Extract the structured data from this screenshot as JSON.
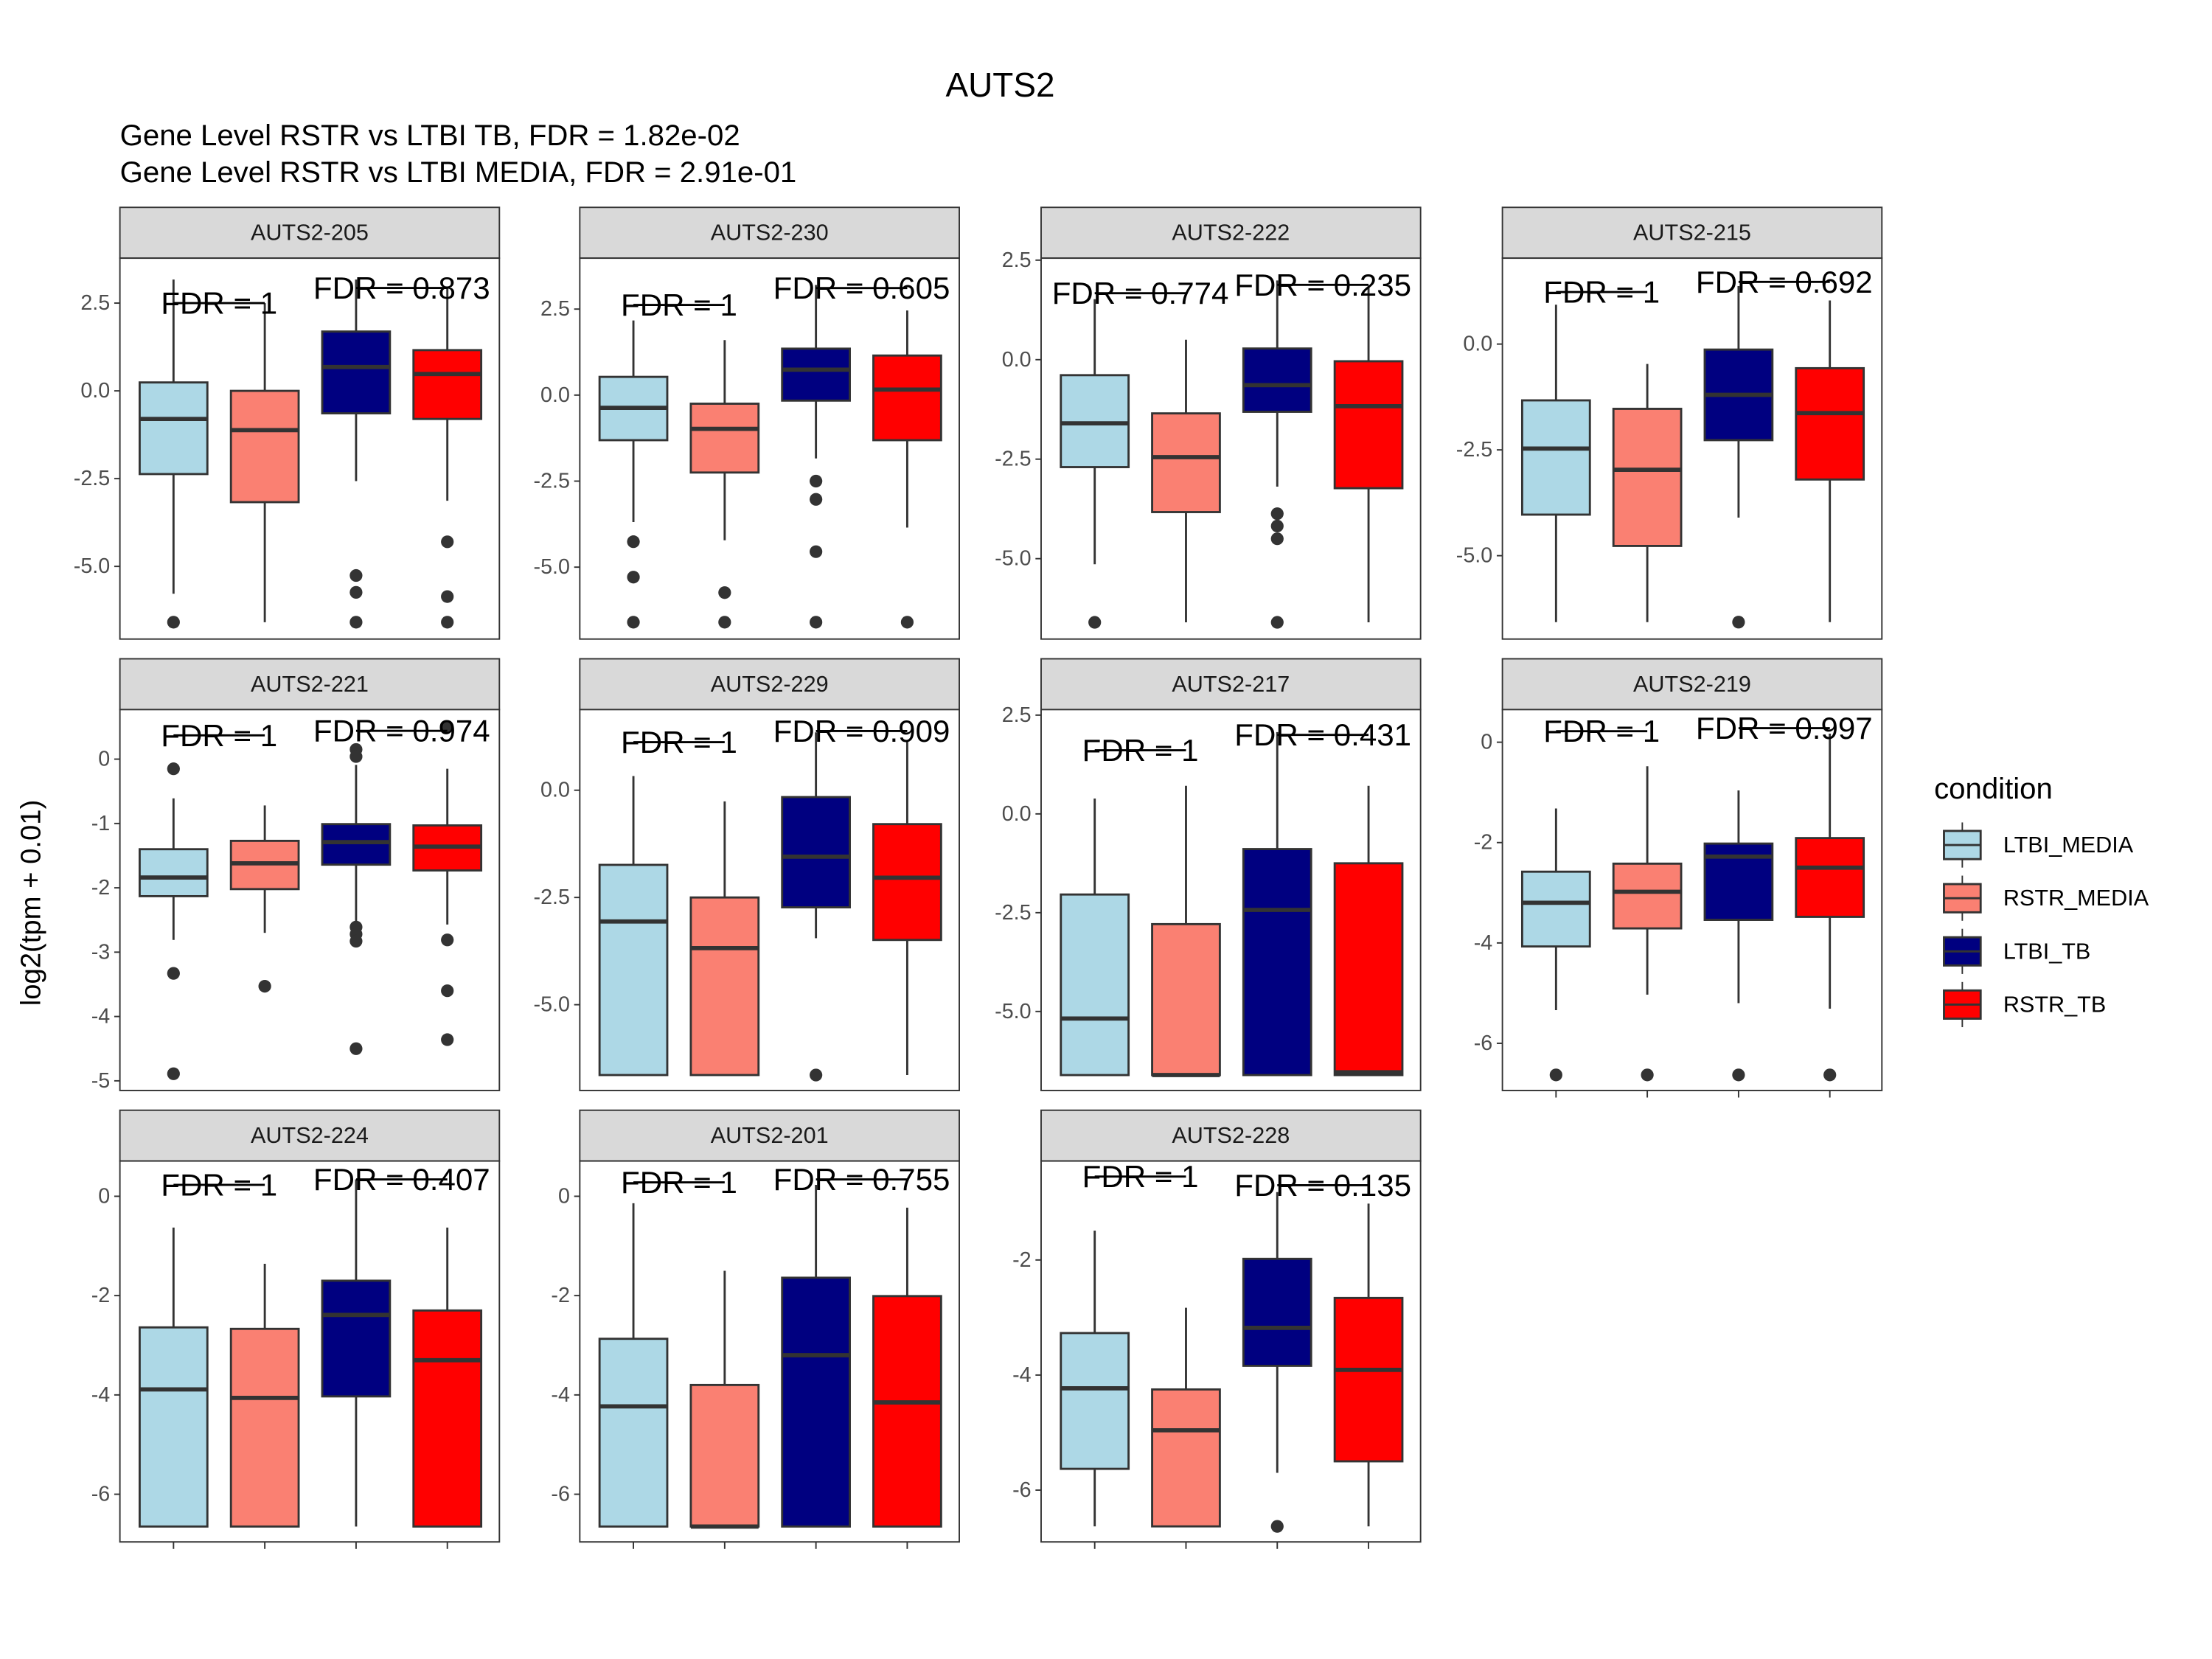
{
  "chart_data": {
    "type": "boxplot",
    "title": "AUTS2",
    "subtitle": [
      "Gene Level RSTR vs LTBI TB, FDR =  1.82e-02",
      "Gene Level RSTR vs LTBI MEDIA, FDR =  2.91e-01"
    ],
    "y_label": "log2(tpm + 0.01)",
    "legend_title": "condition",
    "legend_position": "right",
    "series": [
      {
        "name": "LTBI_MEDIA",
        "color": "#add8e6"
      },
      {
        "name": "RSTR_MEDIA",
        "color": "#fa8072"
      },
      {
        "name": "LTBI_TB",
        "color": "#000080"
      },
      {
        "name": "RSTR_TB",
        "color": "#ff0000"
      }
    ],
    "panels": [
      {
        "title": "AUTS2-205",
        "ylim": [
          -7.07,
          3.78
        ],
        "yticks": [
          2.5,
          {
            "value": 0,
            "label": "0.0"
          },
          -2.5,
          {
            "value": -5,
            "label": "-5.0"
          }
        ],
        "boxes": [
          {
            "low": -5.78,
            "q1": -2.37,
            "median": -0.8,
            "q3": 0.24,
            "high": 3.17,
            "outliers": [
              -6.59
            ]
          },
          {
            "low": -6.59,
            "q1": -3.17,
            "median": -1.12,
            "q3": 0,
            "high": 2.5,
            "outliers": []
          },
          {
            "low": -2.57,
            "q1": -0.64,
            "median": 0.68,
            "q3": 1.69,
            "high": 3.17,
            "outliers": [
              -5.26,
              -5.74,
              -6.59
            ]
          },
          {
            "low": -3.13,
            "q1": -0.8,
            "median": 0.48,
            "q3": 1.16,
            "high": 2.97,
            "outliers": [
              -4.3,
              -5.86,
              -6.59
            ]
          }
        ],
        "annotations": [
          {
            "label": "FDR =  1",
            "y": 2.5
          },
          {
            "label": "FDR =  0.873",
            "y": 2.93
          }
        ]
      },
      {
        "title": "AUTS2-230",
        "ylim": [
          -7.09,
          3.98
        ],
        "yticks": [
          2.5,
          {
            "value": 0,
            "label": "0.0"
          },
          -2.5,
          {
            "value": -5,
            "label": "-5.0"
          }
        ],
        "boxes": [
          {
            "low": -3.69,
            "q1": -1.31,
            "median": -0.37,
            "q3": 0.53,
            "high": 2.17,
            "outliers": [
              -4.26,
              -5.29,
              -6.6
            ]
          },
          {
            "low": -4.22,
            "q1": -2.25,
            "median": -0.98,
            "q3": -0.25,
            "high": 1.6,
            "outliers": [
              -5.74,
              -6.6
            ]
          },
          {
            "low": -1.84,
            "q1": -0.16,
            "median": 0.74,
            "q3": 1.35,
            "high": 3.2,
            "outliers": [
              -2.5,
              -3.03,
              -4.55,
              -6.6
            ]
          },
          {
            "low": -3.85,
            "q1": -1.31,
            "median": 0.16,
            "q3": 1.15,
            "high": 2.46,
            "outliers": [
              -6.6
            ]
          }
        ],
        "annotations": [
          {
            "label": "FDR =  1",
            "y": 2.62
          },
          {
            "label": "FDR =  0.605",
            "y": 3.11
          }
        ]
      },
      {
        "title": "AUTS2-222",
        "ylim": [
          -7.02,
          2.55
        ],
        "yticks": [
          2.5,
          {
            "value": 0,
            "label": "0.0"
          },
          -2.5,
          {
            "value": -5,
            "label": "-5.0"
          }
        ],
        "boxes": [
          {
            "low": -5.14,
            "q1": -2.7,
            "median": -1.6,
            "q3": -0.39,
            "high": 1.52,
            "outliers": [
              -6.6
            ]
          },
          {
            "low": -6.6,
            "q1": -3.83,
            "median": -2.45,
            "q3": -1.35,
            "high": 0.5,
            "outliers": []
          },
          {
            "low": -3.19,
            "q1": -1.31,
            "median": -0.64,
            "q3": 0.28,
            "high": 1.99,
            "outliers": [
              -3.87,
              -4.18,
              -4.5,
              -6.6
            ]
          },
          {
            "low": -6.6,
            "q1": -3.23,
            "median": -1.17,
            "q3": -0.04,
            "high": 1.84,
            "outliers": []
          }
        ],
        "annotations": [
          {
            "label": "FDR =  0.774",
            "y": 1.67
          },
          {
            "label": "FDR =  0.235",
            "y": 1.88
          }
        ]
      },
      {
        "title": "AUTS2-215",
        "ylim": [
          -6.97,
          2.03
        ],
        "yticks": [
          {
            "value": 0,
            "label": "0.0"
          },
          -2.5,
          {
            "value": -5,
            "label": "-5.0"
          }
        ],
        "boxes": [
          {
            "low": -6.57,
            "q1": -4.03,
            "median": -2.47,
            "q3": -1.33,
            "high": 0.93,
            "outliers": []
          },
          {
            "low": -6.57,
            "q1": -4.77,
            "median": -2.97,
            "q3": -1.53,
            "high": -0.47,
            "outliers": []
          },
          {
            "low": -4.1,
            "q1": -2.27,
            "median": -1.2,
            "q3": -0.13,
            "high": 1.37,
            "outliers": [
              -6.57
            ]
          },
          {
            "low": -6.57,
            "q1": -3.2,
            "median": -1.63,
            "q3": -0.57,
            "high": 1.03,
            "outliers": []
          }
        ],
        "annotations": [
          {
            "label": "FDR =  1",
            "y": 1.23
          },
          {
            "label": "FDR =  0.692",
            "y": 1.47
          }
        ]
      },
      {
        "title": "AUTS2-221",
        "ylim": [
          -5.15,
          0.77
        ],
        "yticks": [
          0,
          -1,
          -2,
          -3,
          -4,
          -5
        ],
        "boxes": [
          {
            "low": -2.81,
            "q1": -2.13,
            "median": -1.84,
            "q3": -1.4,
            "high": -0.61,
            "outliers": [
              -0.15,
              -3.33,
              -4.89
            ]
          },
          {
            "low": -2.7,
            "q1": -2.02,
            "median": -1.62,
            "q3": -1.27,
            "high": -0.72,
            "outliers": [
              -3.53
            ]
          },
          {
            "low": -2.52,
            "q1": -1.64,
            "median": -1.29,
            "q3": -1.01,
            "high": -0.09,
            "outliers": [
              0.15,
              0.04,
              -2.61,
              -2.72,
              -2.83,
              -4.5
            ]
          },
          {
            "low": -2.57,
            "q1": -1.73,
            "median": -1.36,
            "q3": -1.03,
            "high": -0.15,
            "outliers": [
              0.5,
              -2.81,
              -3.6,
              -4.36
            ]
          }
        ],
        "annotations": [
          {
            "label": "FDR =  1",
            "y": 0.37
          },
          {
            "label": "FDR =  0.974",
            "y": 0.44
          }
        ]
      },
      {
        "title": "AUTS2-229",
        "ylim": [
          -7.0,
          1.88
        ],
        "yticks": [
          {
            "value": 0,
            "label": "0.0"
          },
          -2.5,
          {
            "value": -5,
            "label": "-5.0"
          }
        ],
        "boxes": [
          {
            "low": -6.64,
            "q1": -6.64,
            "median": -3.06,
            "q3": -1.74,
            "high": 0.33,
            "outliers": []
          },
          {
            "low": -6.64,
            "q1": -6.64,
            "median": -3.68,
            "q3": -2.5,
            "high": -0.26,
            "outliers": []
          },
          {
            "low": -3.45,
            "q1": -2.73,
            "median": -1.55,
            "q3": -0.16,
            "high": 1.35,
            "outliers": [
              -6.64
            ]
          },
          {
            "low": -6.64,
            "q1": -3.49,
            "median": -2.04,
            "q3": -0.79,
            "high": 1.16,
            "outliers": []
          }
        ],
        "annotations": [
          {
            "label": "FDR =  1",
            "y": 1.12
          },
          {
            "label": "FDR =  0.909",
            "y": 1.38
          }
        ]
      },
      {
        "title": "AUTS2-217",
        "ylim": [
          -7.0,
          2.64
        ],
        "yticks": [
          2.5,
          {
            "value": 0,
            "label": "0.0"
          },
          -2.5,
          {
            "value": -5,
            "label": "-5.0"
          }
        ],
        "boxes": [
          {
            "low": -6.61,
            "q1": -6.61,
            "median": -5.18,
            "q3": -2.04,
            "high": 0.39,
            "outliers": []
          },
          {
            "low": -6.61,
            "q1": -6.61,
            "median": -6.61,
            "q3": -2.79,
            "high": 0.71,
            "outliers": []
          },
          {
            "low": -6.61,
            "q1": -6.61,
            "median": -2.43,
            "q3": -0.89,
            "high": 2.07,
            "outliers": []
          },
          {
            "low": -6.61,
            "q1": -6.61,
            "median": -6.54,
            "q3": -1.25,
            "high": 0.71,
            "outliers": []
          }
        ],
        "annotations": [
          {
            "label": "FDR =  1",
            "y": 1.61
          },
          {
            "label": "FDR =  0.431",
            "y": 2.0
          }
        ]
      },
      {
        "title": "AUTS2-219",
        "ylim": [
          -6.94,
          0.65
        ],
        "yticks": [
          0,
          -2,
          -4,
          -6
        ],
        "boxes": [
          {
            "low": -5.34,
            "q1": -4.07,
            "median": -3.2,
            "q3": -2.58,
            "high": -1.32,
            "outliers": [
              -6.63
            ]
          },
          {
            "low": -5.03,
            "q1": -3.71,
            "median": -2.98,
            "q3": -2.42,
            "high": -0.48,
            "outliers": [
              -6.63
            ]
          },
          {
            "low": -5.2,
            "q1": -3.54,
            "median": -2.28,
            "q3": -2.02,
            "high": -0.96,
            "outliers": [
              -6.63
            ]
          },
          {
            "low": -5.31,
            "q1": -3.48,
            "median": -2.5,
            "q3": -1.91,
            "high": 0.17,
            "outliers": [
              -6.63
            ]
          }
        ],
        "annotations": [
          {
            "label": "FDR =  1",
            "y": 0.22
          },
          {
            "label": "FDR =  0.997",
            "y": 0.28
          }
        ]
      },
      {
        "title": "AUTS2-224",
        "ylim": [
          -6.96,
          0.71
        ],
        "yticks": [
          0,
          -2,
          -4,
          -6
        ],
        "boxes": [
          {
            "low": -6.65,
            "q1": -6.65,
            "median": -3.89,
            "q3": -2.64,
            "high": -0.63,
            "outliers": []
          },
          {
            "low": -6.65,
            "q1": -6.65,
            "median": -4.06,
            "q3": -2.67,
            "high": -1.36,
            "outliers": []
          },
          {
            "low": -6.65,
            "q1": -4.03,
            "median": -2.39,
            "q3": -1.7,
            "high": 0.34,
            "outliers": []
          },
          {
            "low": -6.65,
            "q1": -6.65,
            "median": -3.3,
            "q3": -2.3,
            "high": -0.63,
            "outliers": []
          }
        ],
        "annotations": [
          {
            "label": "FDR =  1",
            "y": 0.23
          },
          {
            "label": "FDR =  0.407",
            "y": 0.34
          }
        ]
      },
      {
        "title": "AUTS2-201",
        "ylim": [
          -6.96,
          0.71
        ],
        "yticks": [
          0,
          -2,
          -4,
          -6
        ],
        "boxes": [
          {
            "low": -6.65,
            "q1": -6.65,
            "median": -4.23,
            "q3": -2.87,
            "high": -0.14,
            "outliers": []
          },
          {
            "low": -6.65,
            "q1": -6.65,
            "median": -6.65,
            "q3": -3.8,
            "high": -1.5,
            "outliers": []
          },
          {
            "low": -6.65,
            "q1": -6.65,
            "median": -3.2,
            "q3": -1.64,
            "high": 0.23,
            "outliers": []
          },
          {
            "low": -6.65,
            "q1": -6.65,
            "median": -4.15,
            "q3": -2.01,
            "high": -0.23,
            "outliers": []
          }
        ],
        "annotations": [
          {
            "label": "FDR =  1",
            "y": 0.28
          },
          {
            "label": "FDR =  0.755",
            "y": 0.34
          }
        ]
      },
      {
        "title": "AUTS2-228",
        "ylim": [
          -6.9,
          -0.28
        ],
        "yticks": [
          -2,
          -4,
          -6
        ],
        "boxes": [
          {
            "low": -6.63,
            "q1": -5.63,
            "median": -4.23,
            "q3": -3.27,
            "high": -1.49,
            "outliers": []
          },
          {
            "low": -6.63,
            "q1": -6.63,
            "median": -4.96,
            "q3": -4.25,
            "high": -2.83,
            "outliers": []
          },
          {
            "low": -5.7,
            "q1": -3.84,
            "median": -3.18,
            "q3": -1.98,
            "high": -0.82,
            "outliers": [
              -6.63
            ]
          },
          {
            "low": -6.63,
            "q1": -5.5,
            "median": -3.91,
            "q3": -2.66,
            "high": -1.02,
            "outliers": []
          }
        ],
        "annotations": [
          {
            "label": "FDR =  1",
            "y": -0.55
          },
          {
            "label": "FDR =  0.135",
            "y": -0.7
          }
        ]
      }
    ]
  }
}
